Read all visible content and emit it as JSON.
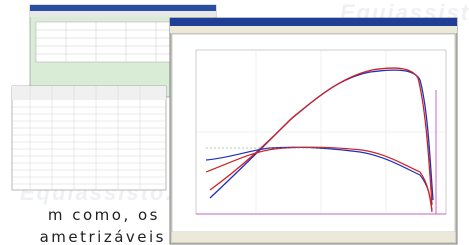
{
  "watermark": "Equiassisto.",
  "caption": {
    "line1": "m como, os",
    "line2": "ametrizáveis"
  }
}
